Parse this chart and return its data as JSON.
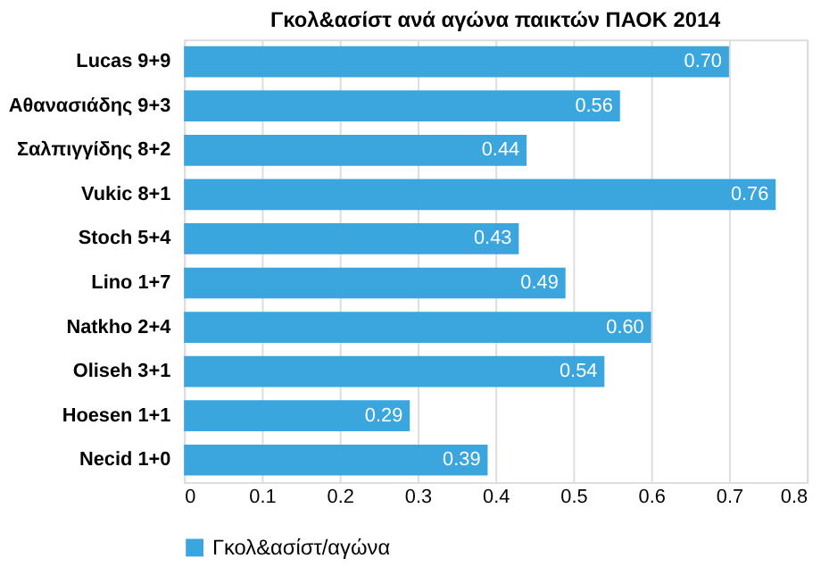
{
  "chart_data": {
    "type": "bar",
    "orientation": "horizontal",
    "title": "Γκολ&ασίστ ανά αγώνα παικτών ΠΑΟΚ 2014",
    "categories": [
      "Lucas 9+9",
      "Αθανασιάδης 9+3",
      "Σαλπιγγίδης 8+2",
      "Vukic 8+1",
      "Stoch 5+4",
      "Lino 1+7",
      "Natkho 2+4",
      "Oliseh 3+1",
      "Hoesen 1+1",
      "Necid 1+0"
    ],
    "series": [
      {
        "name": "Γκολ&ασίστ/αγώνα",
        "color": "#3aa6dd",
        "values": [
          0.7,
          0.56,
          0.44,
          0.76,
          0.43,
          0.49,
          0.6,
          0.54,
          0.29,
          0.39
        ],
        "value_labels": [
          "0.70",
          "0.56",
          "0.44",
          "0.76",
          "0.43",
          "0.49",
          "0.60",
          "0.54",
          "0.29",
          "0.39"
        ]
      }
    ],
    "xlim": [
      0,
      0.8
    ],
    "xticks": [
      0,
      0.1,
      0.2,
      0.3,
      0.4,
      0.5,
      0.6,
      0.7,
      0.8
    ],
    "grid": "x",
    "legend": "bottom"
  }
}
